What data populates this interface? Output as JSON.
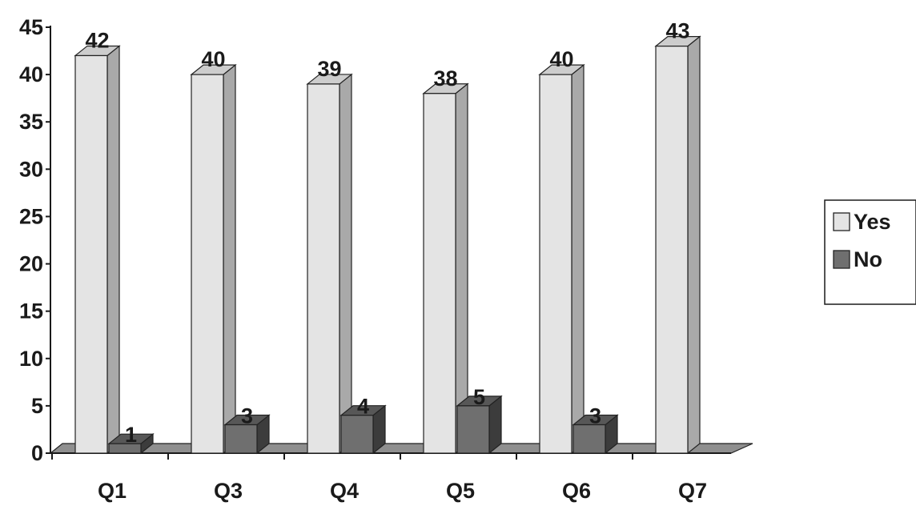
{
  "chart_data": {
    "type": "bar",
    "categories": [
      "Q1",
      "Q3",
      "Q4",
      "Q5",
      "Q6",
      "Q7"
    ],
    "series": [
      {
        "name": "Yes",
        "values": [
          42,
          40,
          39,
          38,
          40,
          43
        ]
      },
      {
        "name": "No",
        "values": [
          1,
          3,
          4,
          5,
          3,
          null
        ]
      }
    ],
    "title": "",
    "xlabel": "",
    "ylabel": "",
    "ylim": [
      0,
      45
    ],
    "yticks": [
      0,
      5,
      10,
      15,
      20,
      25,
      30,
      35,
      40,
      45
    ],
    "legend_position": "right",
    "grid": false,
    "colors": {
      "Yes": {
        "front": "#e4e4e4",
        "side": "#a9a9a9",
        "top": "#cdcdcd"
      },
      "No": {
        "front": "#6f6f6f",
        "side": "#3c3c3c",
        "top": "#575757"
      },
      "floor": "#8f8f8f"
    }
  }
}
